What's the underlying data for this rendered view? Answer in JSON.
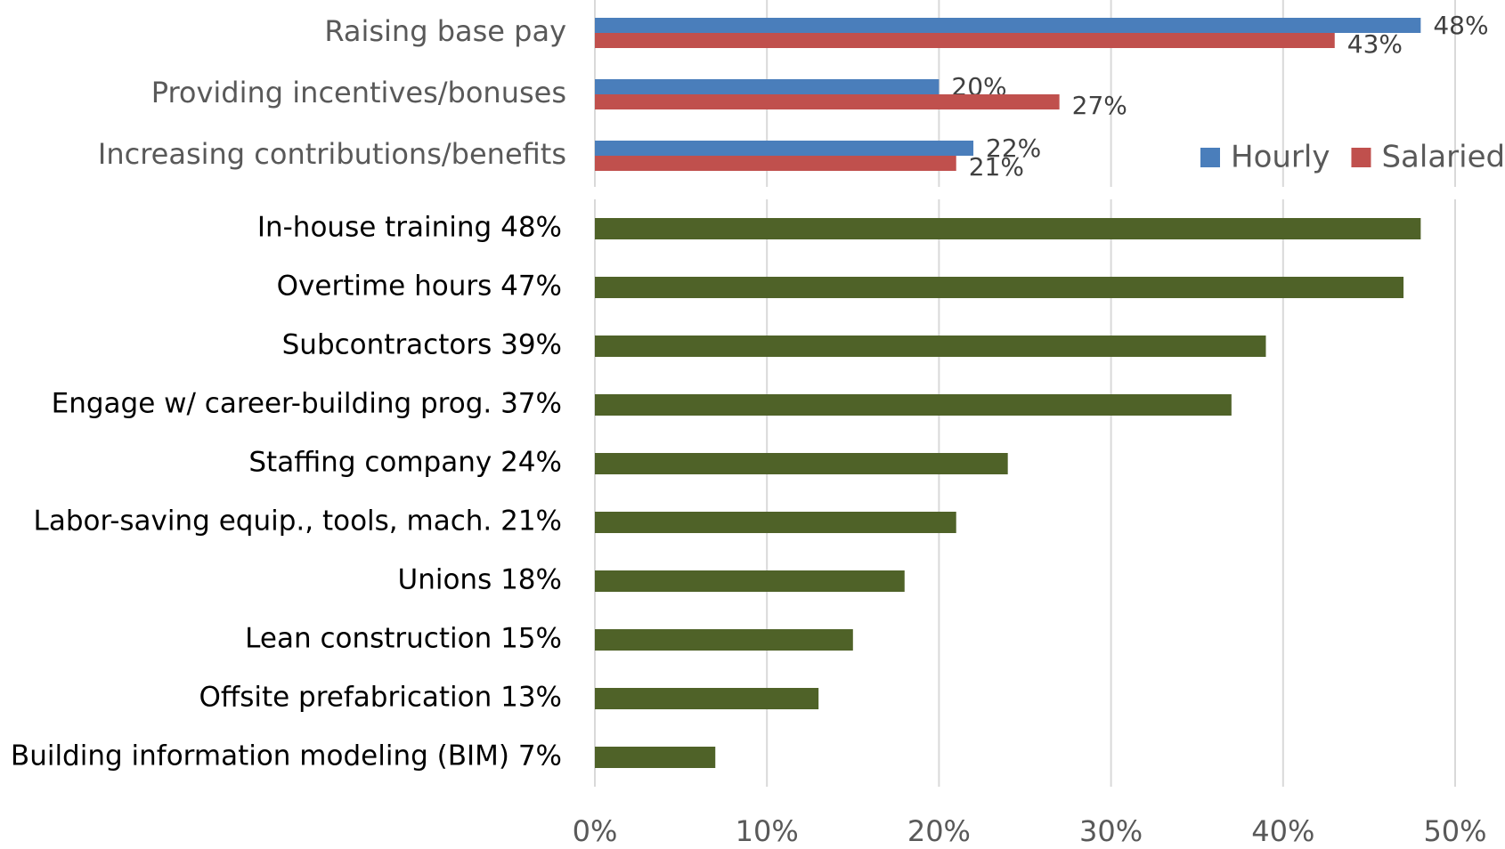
{
  "chart_data": [
    {
      "type": "bar",
      "orientation": "horizontal",
      "categories": [
        "Raising base pay",
        "Providing incentives/bonuses",
        "Increasing contributions/benefits"
      ],
      "series": [
        {
          "name": "Hourly",
          "color": "#4a7ebb",
          "values": [
            48,
            20,
            22
          ],
          "value_labels": [
            "48%",
            "20%",
            "22%"
          ]
        },
        {
          "name": "Salaried",
          "color": "#c0504d",
          "values": [
            43,
            27,
            21
          ],
          "value_labels": [
            "43%",
            "27%",
            "21%"
          ]
        }
      ],
      "xlim": [
        0,
        50
      ],
      "grid": true,
      "legend": "lower right"
    },
    {
      "type": "bar",
      "orientation": "horizontal",
      "categories": [
        "In-house training 48%",
        "Overtime hours 47%",
        "Subcontractors  39%",
        "Engage w/ career-building prog. 37%",
        "Staffing company  24%",
        "Labor-saving equip., tools, mach. 21%",
        "Unions 18%",
        "Lean construction  15%",
        "Offsite prefabrication 13%",
        "Building information modeling (BIM)  7%"
      ],
      "values": [
        48,
        47,
        39,
        37,
        24,
        21,
        18,
        15,
        13,
        7
      ],
      "color": "#4f6228",
      "xlim": [
        0,
        50
      ],
      "xticks": [
        {
          "value": 0,
          "label": "0%"
        },
        {
          "value": 10,
          "label": "10%"
        },
        {
          "value": 20,
          "label": "20%"
        },
        {
          "value": 30,
          "label": "30%"
        },
        {
          "value": 40,
          "label": "40%"
        },
        {
          "value": 50,
          "label": "50%"
        }
      ],
      "grid": true
    }
  ]
}
